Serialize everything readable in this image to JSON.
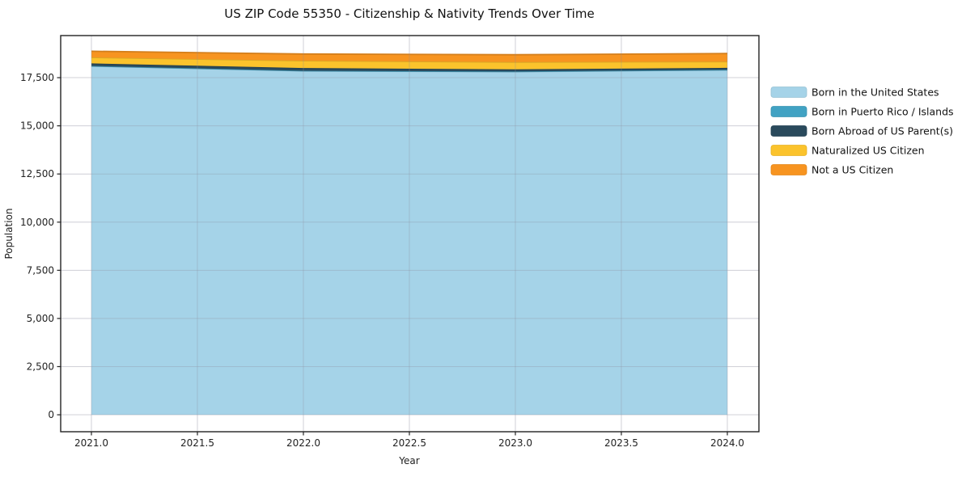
{
  "chart_data": {
    "type": "area",
    "stacked": true,
    "title": "US ZIP Code 55350 - Citizenship & Nativity Trends Over Time",
    "xlabel": "Year",
    "ylabel": "Population",
    "x": [
      2021,
      2022,
      2023,
      2024
    ],
    "series": [
      {
        "name": "Born in the United States",
        "color": "#a5d3e8",
        "values": [
          18100,
          17850,
          17810,
          17900
        ]
      },
      {
        "name": "Born in Puerto Rico / Islands",
        "color": "#41a2c3",
        "values": [
          10,
          10,
          10,
          10
        ]
      },
      {
        "name": "Born Abroad of US Parent(s)",
        "color": "#2a4a5c",
        "values": [
          130,
          140,
          110,
          100
        ]
      },
      {
        "name": "Naturalized US Citizen",
        "color": "#fbc32c",
        "values": [
          310,
          380,
          380,
          325
        ]
      },
      {
        "name": "Not a US Citizen",
        "color": "#f79420",
        "values": [
          320,
          350,
          380,
          420
        ]
      }
    ],
    "x_ticks": [
      2021.0,
      2021.5,
      2022.0,
      2022.5,
      2023.0,
      2023.5,
      2024.0
    ],
    "x_tick_labels": [
      "2021.0",
      "2021.5",
      "2022.0",
      "2022.5",
      "2023.0",
      "2023.5",
      "2024.0"
    ],
    "y_ticks": [
      0,
      2500,
      5000,
      7500,
      10000,
      12500,
      15000,
      17500
    ],
    "y_tick_labels": [
      "0",
      "2,500",
      "5,000",
      "7,500",
      "10,000",
      "12,500",
      "15,000",
      "17,500"
    ],
    "xlim": [
      2020.855,
      2024.149
    ],
    "ylim": [
      -880,
      19685
    ],
    "grid": true,
    "legend_position": "right"
  },
  "colors": {
    "grid_rgba": "rgba(140,140,155,0.32)",
    "frame": "#222222",
    "tick_text": "#222222",
    "title_text": "#111111"
  }
}
